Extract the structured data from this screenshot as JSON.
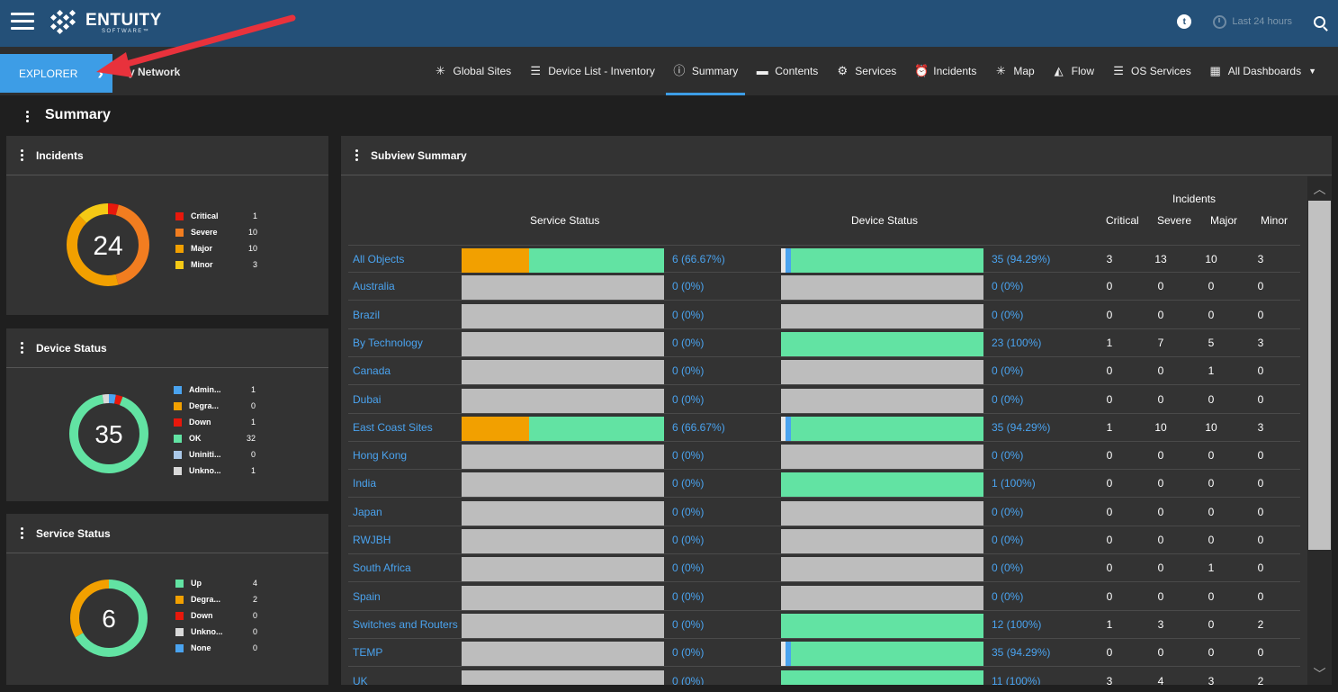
{
  "header": {
    "brand": "ENTUITY",
    "brand_sub": "SOFTWARE™",
    "tz_label": "t",
    "timerange": "Last 24 hours"
  },
  "nav": {
    "explorer_label": "EXPLORER",
    "breadcrumb": "My Network",
    "tabs": [
      {
        "label": "Global Sites",
        "icon": "global-sites-icon",
        "glyph": "✳"
      },
      {
        "label": "Device List - Inventory",
        "icon": "list-icon",
        "glyph": "☰"
      },
      {
        "label": "Summary",
        "icon": "info-icon",
        "glyph": "ⓘ"
      },
      {
        "label": "Contents",
        "icon": "folder-icon",
        "glyph": "▬"
      },
      {
        "label": "Services",
        "icon": "gears-icon",
        "glyph": "⚙"
      },
      {
        "label": "Incidents",
        "icon": "alarm-icon",
        "glyph": "⏰"
      },
      {
        "label": "Map",
        "icon": "map-icon",
        "glyph": "✳"
      },
      {
        "label": "Flow",
        "icon": "flow-chart-icon",
        "glyph": "◭"
      },
      {
        "label": "OS Services",
        "icon": "list-icon",
        "glyph": "☰"
      },
      {
        "label": "All Dashboards",
        "icon": "dashboard-icon",
        "glyph": "▦"
      }
    ]
  },
  "page": {
    "title": "Summary"
  },
  "incidents_panel": {
    "title": "Incidents",
    "total": "24",
    "items": [
      {
        "label": "Critical",
        "value": "1",
        "color": "#e8180c"
      },
      {
        "label": "Severe",
        "value": "10",
        "color": "#f27d20"
      },
      {
        "label": "Major",
        "value": "10",
        "color": "#f2a000"
      },
      {
        "label": "Minor",
        "value": "3",
        "color": "#f4c915"
      }
    ]
  },
  "device_panel": {
    "title": "Device Status",
    "total": "35",
    "items": [
      {
        "label": "Admin...",
        "value": "1",
        "color": "#4aa3ef"
      },
      {
        "label": "Degra...",
        "value": "0",
        "color": "#f2a000"
      },
      {
        "label": "Down",
        "value": "1",
        "color": "#e8180c"
      },
      {
        "label": "OK",
        "value": "32",
        "color": "#62e3a3"
      },
      {
        "label": "Uniniti...",
        "value": "0",
        "color": "#aac8e8"
      },
      {
        "label": "Unkno...",
        "value": "1",
        "color": "#d9d9d9"
      }
    ]
  },
  "service_panel": {
    "title": "Service Status",
    "total": "6",
    "items": [
      {
        "label": "Up",
        "value": "4",
        "color": "#62e3a3"
      },
      {
        "label": "Degra...",
        "value": "2",
        "color": "#f2a000"
      },
      {
        "label": "Down",
        "value": "0",
        "color": "#e8180c"
      },
      {
        "label": "Unkno...",
        "value": "0",
        "color": "#d9d9d9"
      },
      {
        "label": "None",
        "value": "0",
        "color": "#4aa3ef"
      }
    ]
  },
  "subview": {
    "title": "Subview Summary",
    "headers": {
      "service": "Service Status",
      "device": "Device Status",
      "incidents": "Incidents",
      "critical": "Critical",
      "severe": "Severe",
      "major": "Major",
      "minor": "Minor"
    },
    "rows": [
      {
        "name": "All Objects",
        "svc": [
          0.333,
          0.667
        ],
        "svc_pct": "6 (66.67%)",
        "dev": [
          0.03,
          0.97
        ],
        "dev_pct": "35 (94.29%)",
        "inc": [
          "3",
          "13",
          "10",
          "3"
        ]
      },
      {
        "name": "Australia",
        "svc": [
          0,
          0
        ],
        "svc_pct": "0 (0%)",
        "dev": [
          0,
          0
        ],
        "dev_pct": "0 (0%)",
        "inc": [
          "0",
          "0",
          "0",
          "0"
        ]
      },
      {
        "name": "Brazil",
        "svc": [
          0,
          0
        ],
        "svc_pct": "0 (0%)",
        "dev": [
          0,
          0
        ],
        "dev_pct": "0 (0%)",
        "inc": [
          "0",
          "0",
          "0",
          "0"
        ]
      },
      {
        "name": "By Technology",
        "svc": [
          0,
          0
        ],
        "svc_pct": "0 (0%)",
        "dev": [
          0,
          1
        ],
        "dev_pct": "23 (100%)",
        "inc": [
          "1",
          "7",
          "5",
          "3"
        ]
      },
      {
        "name": "Canada",
        "svc": [
          0,
          0
        ],
        "svc_pct": "0 (0%)",
        "dev": [
          0,
          0
        ],
        "dev_pct": "0 (0%)",
        "inc": [
          "0",
          "0",
          "1",
          "0"
        ]
      },
      {
        "name": "Dubai",
        "svc": [
          0,
          0
        ],
        "svc_pct": "0 (0%)",
        "dev": [
          0,
          0
        ],
        "dev_pct": "0 (0%)",
        "inc": [
          "0",
          "0",
          "0",
          "0"
        ]
      },
      {
        "name": "East Coast Sites",
        "svc": [
          0.333,
          0.667
        ],
        "svc_pct": "6 (66.67%)",
        "dev": [
          0.03,
          0.97
        ],
        "dev_pct": "35 (94.29%)",
        "inc": [
          "1",
          "10",
          "10",
          "3"
        ]
      },
      {
        "name": "Hong Kong",
        "svc": [
          0,
          0
        ],
        "svc_pct": "0 (0%)",
        "dev": [
          0,
          0
        ],
        "dev_pct": "0 (0%)",
        "inc": [
          "0",
          "0",
          "0",
          "0"
        ]
      },
      {
        "name": "India",
        "svc": [
          0,
          0
        ],
        "svc_pct": "0 (0%)",
        "dev": [
          0,
          1
        ],
        "dev_pct": "1 (100%)",
        "inc": [
          "0",
          "0",
          "0",
          "0"
        ]
      },
      {
        "name": "Japan",
        "svc": [
          0,
          0
        ],
        "svc_pct": "0 (0%)",
        "dev": [
          0,
          0
        ],
        "dev_pct": "0 (0%)",
        "inc": [
          "0",
          "0",
          "0",
          "0"
        ]
      },
      {
        "name": "RWJBH",
        "svc": [
          0,
          0
        ],
        "svc_pct": "0 (0%)",
        "dev": [
          0,
          0
        ],
        "dev_pct": "0 (0%)",
        "inc": [
          "0",
          "0",
          "0",
          "0"
        ]
      },
      {
        "name": "South Africa",
        "svc": [
          0,
          0
        ],
        "svc_pct": "0 (0%)",
        "dev": [
          0,
          0
        ],
        "dev_pct": "0 (0%)",
        "inc": [
          "0",
          "0",
          "1",
          "0"
        ]
      },
      {
        "name": "Spain",
        "svc": [
          0,
          0
        ],
        "svc_pct": "0 (0%)",
        "dev": [
          0,
          0
        ],
        "dev_pct": "0 (0%)",
        "inc": [
          "0",
          "0",
          "0",
          "0"
        ]
      },
      {
        "name": "Switches and Routers b",
        "svc": [
          0,
          0
        ],
        "svc_pct": "0 (0%)",
        "dev": [
          0,
          1
        ],
        "dev_pct": "12 (100%)",
        "inc": [
          "1",
          "3",
          "0",
          "2"
        ]
      },
      {
        "name": "TEMP",
        "svc": [
          0,
          0
        ],
        "svc_pct": "0 (0%)",
        "dev": [
          0.03,
          0.97
        ],
        "dev_pct": "35 (94.29%)",
        "inc": [
          "0",
          "0",
          "0",
          "0"
        ]
      },
      {
        "name": "UK",
        "svc": [
          0,
          0
        ],
        "svc_pct": "0 (0%)",
        "dev": [
          0,
          1
        ],
        "dev_pct": "11 (100%)",
        "inc": [
          "3",
          "4",
          "3",
          "2"
        ]
      }
    ]
  },
  "colors": {
    "header_bg": "#245078",
    "accent": "#3d9de6",
    "link": "#4aa3ef",
    "ok_green": "#62e3a3",
    "degraded_orange": "#f2a000",
    "admin_blue": "#4aa3ef",
    "empty_bar": "#bdbdbd",
    "annotation_red": "#e8323c"
  }
}
